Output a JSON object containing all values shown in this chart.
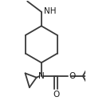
{
  "bg_color": "#ffffff",
  "line_color": "#3a3a3a",
  "line_width": 1.3,
  "font_color": "#1a1a1a",
  "font_size": 7.5,
  "figsize": [
    1.09,
    1.26
  ],
  "dpi": 100,
  "xlim": [
    -0.55,
    0.65
  ],
  "ylim": [
    -0.6,
    0.8
  ]
}
